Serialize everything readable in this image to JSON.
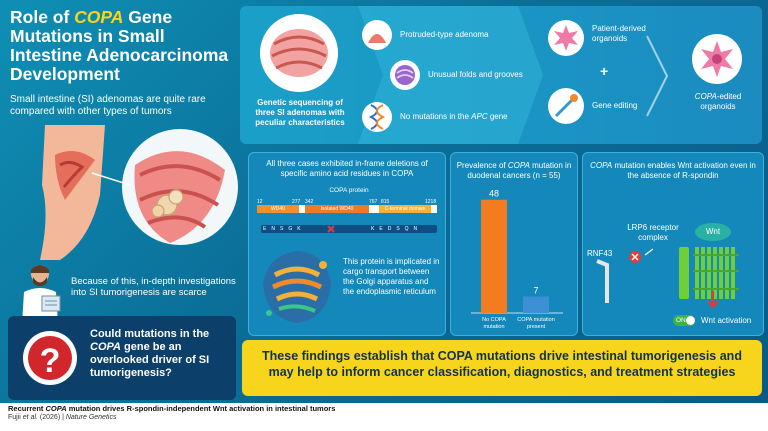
{
  "title": {
    "part1": "Role of ",
    "gene": "COPA",
    "part2": " Gene Mutations in Small Intestine Adenocarcinoma Development"
  },
  "intro": "Small intestine (SI) adenomas are quite rare compared with other types of tumors",
  "because": "Because of this, in-depth investigations into SI tumorigenesis are scarce",
  "question": {
    "part1": "Could mutations in the ",
    "gene": "COPA",
    "part2": " gene be an overlooked driver of SI tumorigenesis?"
  },
  "sequencing": "Genetic sequencing of three SI adenomas with peculiar characteristics",
  "features": [
    {
      "text": "Protruded-type adenoma",
      "icon": "adenoma-icon"
    },
    {
      "text": "Unusual folds and grooves",
      "icon": "folds-icon"
    },
    {
      "text_a": "No mutations in the ",
      "gene": "APC",
      "text_b": " gene",
      "icon": "dna-icon"
    }
  ],
  "organoids": {
    "patient": "Patient-derived organoids",
    "plus": "+",
    "editing": "Gene editing",
    "edited_gene": "COPA",
    "edited_suffix": "-edited organoids"
  },
  "deletion_panel": {
    "heading": "All three cases exhibited in-frame deletions of specific amino acid residues in COPA",
    "protein_label": "COPA protein",
    "positions": [
      "12",
      "277",
      "342",
      "767",
      "815",
      "1218"
    ],
    "domains": [
      "WD40",
      "Isolated WD40",
      "C-terminal domain"
    ],
    "residues_left": [
      "E",
      "N",
      "S",
      "G",
      "K"
    ],
    "residues_right": [
      "K",
      "E",
      "D",
      "S",
      "Q",
      "N"
    ],
    "function": "This protein is implicated in cargo transport between the Golgi apparatus and the endoplasmic reticulum"
  },
  "prevalence_panel": {
    "heading_a": "Prevalence of ",
    "gene": "COPA",
    "heading_b": " mutation in duodenal cancers (n = 55)",
    "chart_data": {
      "type": "bar",
      "categories": [
        "No COPA mutation",
        "COPA mutation present"
      ],
      "values": [
        48,
        7
      ],
      "colors": [
        "#f47c20",
        "#3d8fd6"
      ]
    }
  },
  "wnt_panel": {
    "heading_gene": "COPA",
    "heading_rest": " mutation enables Wnt activation even in the absence of R-spondin",
    "lrp6": "LRP6 receptor complex",
    "wnt": "Wnt",
    "rnf43": "RNF43",
    "toggle": "ON",
    "activation": "Wnt activation"
  },
  "conclusion": "These findings establish that COPA mutations drive intestinal tumorigenesis and may help to inform cancer classification, diagnostics, and treatment strategies",
  "footer": {
    "line1_a": "Recurrent ",
    "line1_gene": "COPA",
    "line1_b": " mutation drives R-spondin-independent Wnt activation in intestinal tumors",
    "line2_a": "Fujii ",
    "line2_etal": "et al.",
    "line2_b": " (2026) | ",
    "line2_journal": "Nature Genetics"
  },
  "colors": {
    "accent_yellow": "#f7d51d",
    "bar_no": "#f47c20",
    "bar_yes": "#3d8fd6",
    "on_green": "#3ab44a"
  }
}
